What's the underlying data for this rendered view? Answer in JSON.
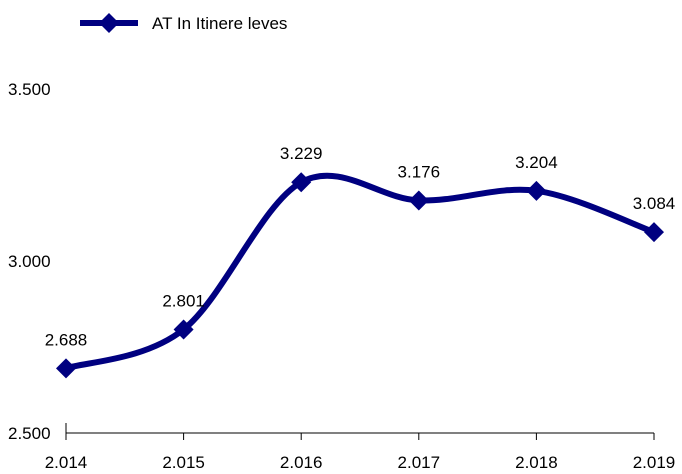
{
  "chart_data": {
    "type": "line",
    "title": "",
    "xlabel": "",
    "ylabel": "",
    "categories": [
      "2.014",
      "2.015",
      "2.016",
      "2.017",
      "2.018",
      "2.019"
    ],
    "series": [
      {
        "name": "AT In Itinere leves",
        "values": [
          2688,
          2801,
          3229,
          3176,
          3204,
          3084
        ],
        "data_labels": [
          "2.688",
          "2.801",
          "3.229",
          "3.176",
          "3.204",
          "3.084"
        ],
        "color": "#000080",
        "marker": "diamond",
        "smooth": true
      }
    ],
    "ylim": [
      2500,
      3500
    ],
    "yticks": [
      2500,
      3000,
      3500
    ],
    "ytick_labels": [
      "2.500",
      "3.000",
      "3.500"
    ],
    "grid": false,
    "legend_position": "top-left"
  }
}
